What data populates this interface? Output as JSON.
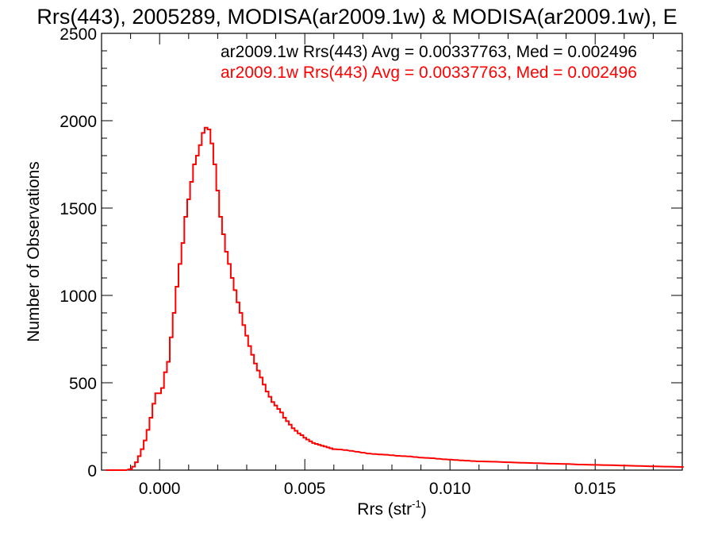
{
  "chart_data": {
    "type": "histogram",
    "title": "Rrs(443), 2005289, MODISA(ar2009.1w) & MODISA(ar2009.1w), E",
    "xlabel": "Rrs (str",
    "xlabel_superscript": "-1",
    "xlabel_suffix": ")",
    "ylabel": "Number of Observations",
    "xlim": [
      -0.002,
      0.018
    ],
    "ylim": [
      0,
      2500
    ],
    "xticks": [
      0.0,
      0.005,
      0.01,
      0.015
    ],
    "xtick_labels": [
      "0.000",
      "0.005",
      "0.010",
      "0.015"
    ],
    "yticks": [
      0,
      500,
      1000,
      1500,
      2000,
      2500
    ],
    "ytick_labels": [
      "0",
      "500",
      "1000",
      "1500",
      "2000",
      "2500"
    ],
    "grid": false,
    "legend_position": "top-right",
    "annotations": [
      {
        "text": "ar2009.1w Rrs(443) Avg = 0.00337763, Med = 0.002496",
        "color": "#000000"
      },
      {
        "text": "ar2009.1w Rrs(443) Avg = 0.00337763, Med = 0.002496",
        "color": "#ff0000"
      }
    ],
    "series": [
      {
        "color": "#ff0000",
        "bin_width": 5e-05,
        "x": [
          -0.0018,
          -0.0015,
          -0.0012,
          -0.001,
          -0.0009,
          -0.0008,
          -0.0007,
          -0.0006,
          -0.0005,
          -0.0004,
          -0.0003,
          -0.0002,
          -0.0001,
          0.0,
          0.0001,
          0.0002,
          0.0003,
          0.0004,
          0.0005,
          0.0006,
          0.0007,
          0.0008,
          0.0009,
          0.001,
          0.0011,
          0.0012,
          0.0013,
          0.0014,
          0.0015,
          0.0016,
          0.0017,
          0.0018,
          0.0019,
          0.002,
          0.0021,
          0.0022,
          0.0023,
          0.0024,
          0.0025,
          0.0026,
          0.0027,
          0.0028,
          0.0029,
          0.003,
          0.0031,
          0.0032,
          0.0033,
          0.0034,
          0.0035,
          0.0036,
          0.0037,
          0.0038,
          0.0039,
          0.004,
          0.0041,
          0.0042,
          0.0043,
          0.0044,
          0.0045,
          0.0046,
          0.0047,
          0.0048,
          0.0049,
          0.005,
          0.0051,
          0.0052,
          0.0053,
          0.0054,
          0.0055,
          0.0056,
          0.0057,
          0.0058,
          0.0059,
          0.006,
          0.0062,
          0.0064,
          0.0066,
          0.0068,
          0.007,
          0.0072,
          0.0074,
          0.0076,
          0.0078,
          0.008,
          0.0082,
          0.0084,
          0.0086,
          0.0088,
          0.009,
          0.0092,
          0.0094,
          0.0096,
          0.0098,
          0.01,
          0.0102,
          0.0104,
          0.0106,
          0.0108,
          0.011,
          0.0115,
          0.012,
          0.0125,
          0.013,
          0.0135,
          0.014,
          0.0145,
          0.015,
          0.0155,
          0.016,
          0.0165,
          0.017,
          0.0175,
          0.018
        ],
        "values": [
          0,
          0,
          0,
          5,
          20,
          45,
          80,
          120,
          170,
          230,
          300,
          380,
          440,
          440,
          470,
          560,
          620,
          760,
          900,
          1050,
          1180,
          1300,
          1450,
          1550,
          1650,
          1750,
          1800,
          1860,
          1930,
          1960,
          1950,
          1870,
          1750,
          1600,
          1450,
          1350,
          1250,
          1180,
          1100,
          1030,
          960,
          900,
          830,
          770,
          710,
          660,
          610,
          570,
          530,
          490,
          450,
          420,
          390,
          370,
          350,
          330,
          300,
          280,
          260,
          240,
          225,
          210,
          200,
          185,
          175,
          165,
          155,
          150,
          145,
          140,
          135,
          130,
          125,
          120,
          118,
          115,
          110,
          105,
          100,
          95,
          92,
          90,
          88,
          85,
          82,
          80,
          78,
          75,
          72,
          70,
          68,
          65,
          62,
          60,
          58,
          56,
          54,
          52,
          50,
          48,
          45,
          42,
          40,
          37,
          35,
          32,
          30,
          28,
          26,
          24,
          22,
          20,
          18
        ]
      }
    ]
  }
}
